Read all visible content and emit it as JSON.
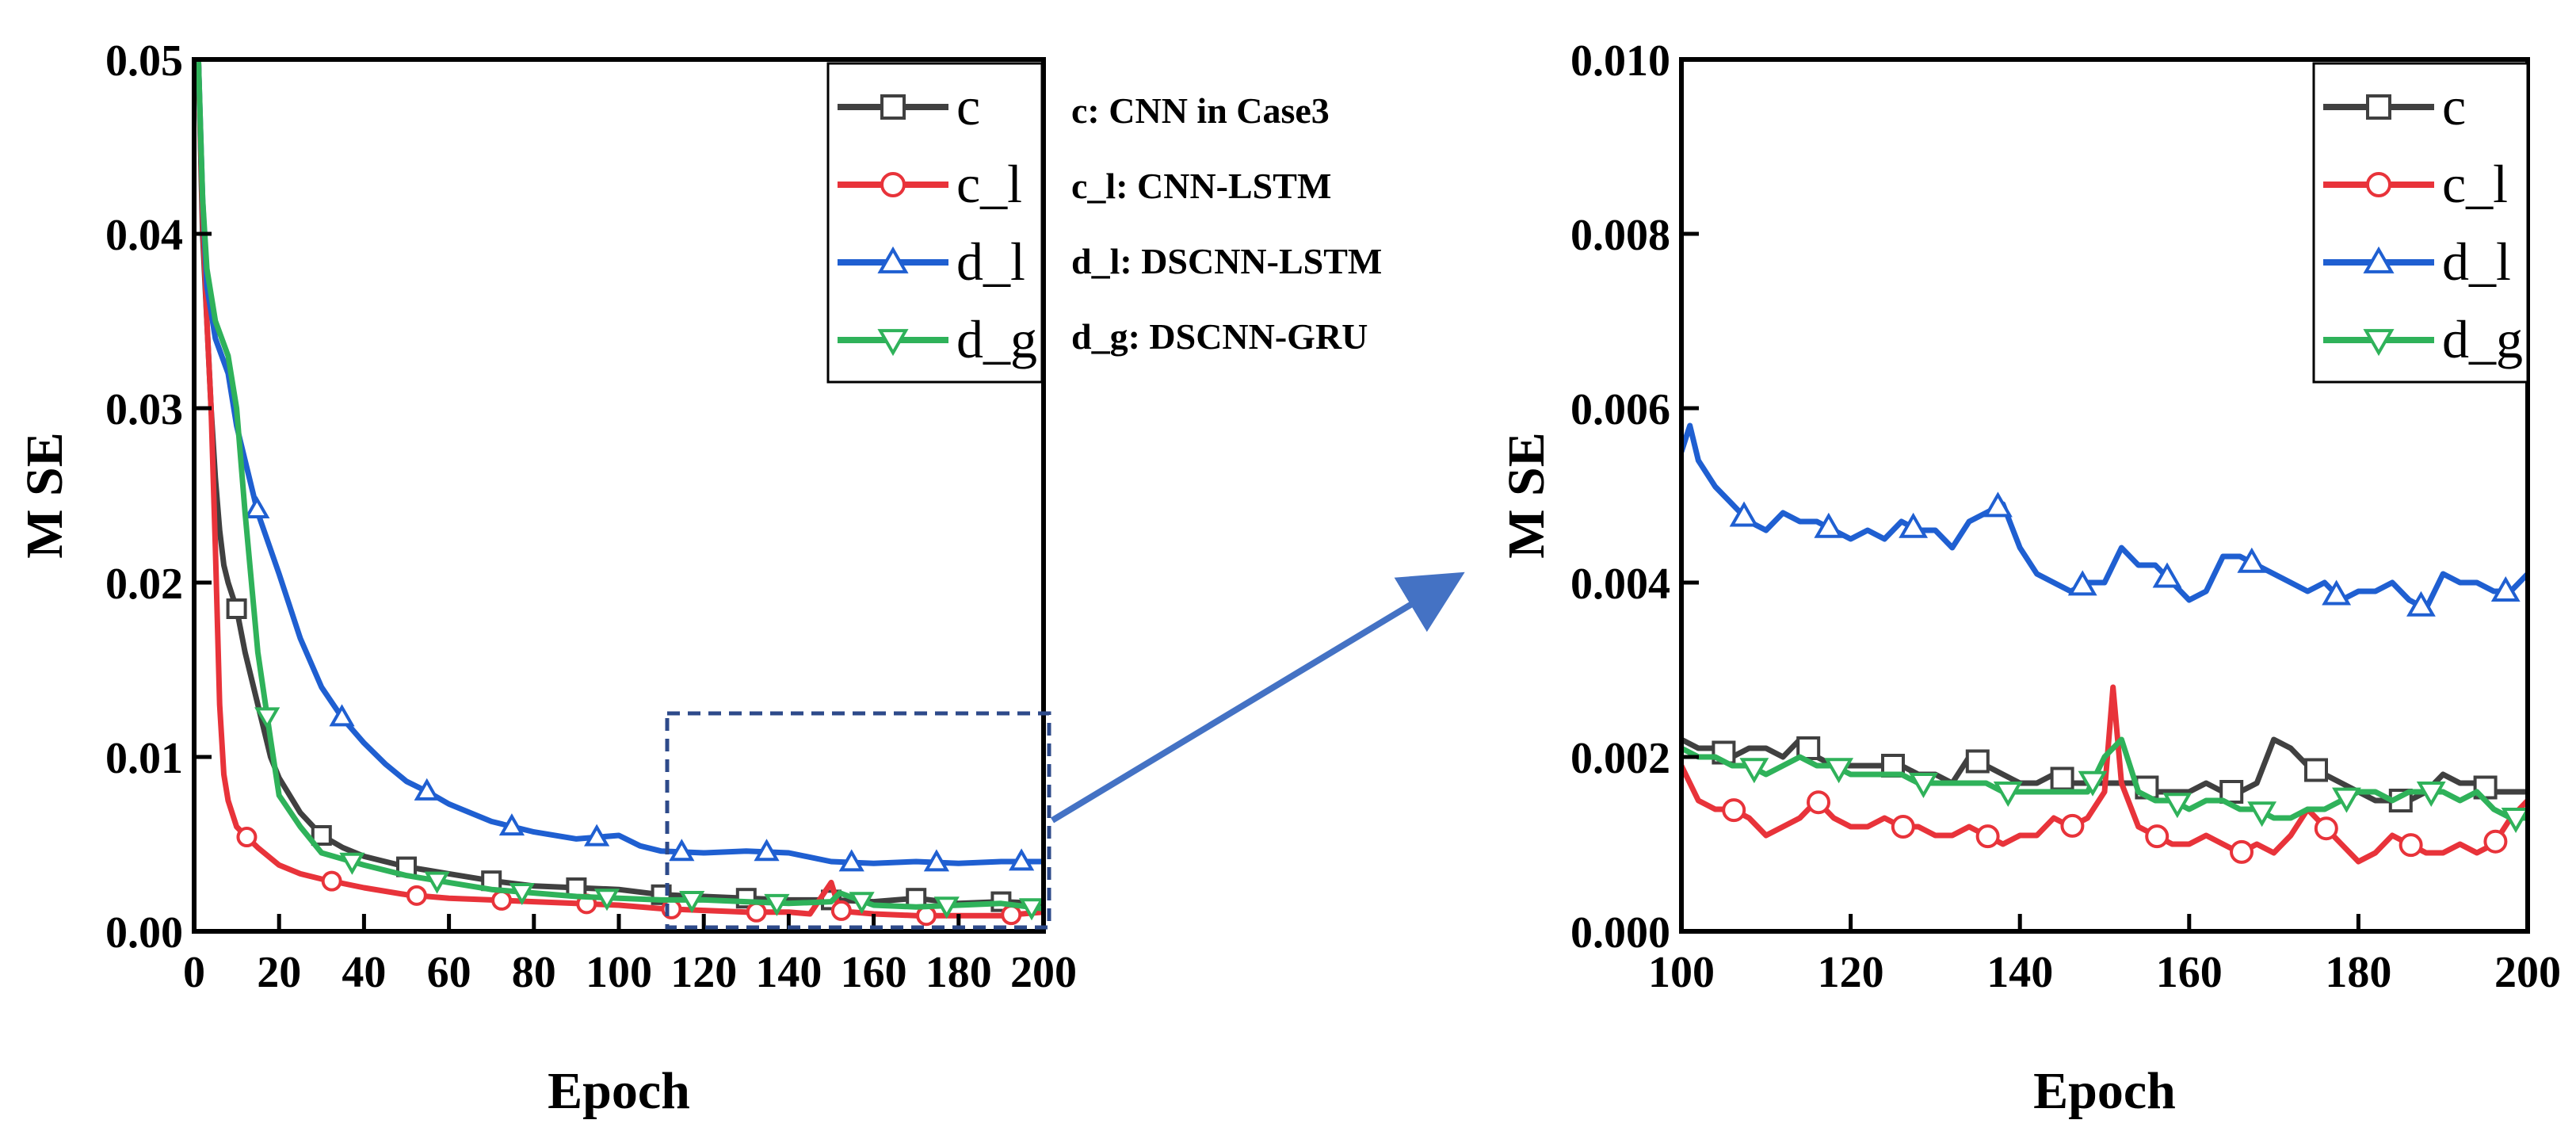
{
  "chart_data": [
    {
      "type": "line",
      "panel": "left",
      "title": "",
      "xlabel": "Epoch",
      "ylabel": "M SE",
      "xlim": [
        0,
        200
      ],
      "ylim": [
        0,
        0.05
      ],
      "xticks": [
        0,
        20,
        40,
        60,
        80,
        100,
        120,
        140,
        160,
        180,
        200
      ],
      "xtick_labels": [
        "0",
        "20",
        "40",
        "60",
        "80",
        "100",
        "120",
        "140",
        "160",
        "180",
        "200"
      ],
      "yticks": [
        0,
        0.01,
        0.02,
        0.03,
        0.04,
        0.05
      ],
      "ytick_labels": [
        "0.00",
        "0.01",
        "0.02",
        "0.03",
        "0.04",
        "0.05"
      ],
      "legend": [
        "c",
        "c_l",
        "d_l",
        "d_g"
      ],
      "legend_position": "top-right",
      "zoom_region": {
        "x": [
          110,
          200
        ],
        "y": [
          0,
          0.0125
        ]
      },
      "series": [
        {
          "name": "c",
          "color": "#404040",
          "marker": "square",
          "x": [
            1,
            2,
            3,
            4,
            5,
            6,
            7,
            8,
            10,
            12,
            15,
            18,
            20,
            25,
            30,
            35,
            40,
            45,
            50,
            55,
            60,
            70,
            80,
            90,
            100,
            110,
            120,
            130,
            140,
            150,
            160,
            170,
            180,
            190,
            200
          ],
          "y": [
            0.05,
            0.04,
            0.035,
            0.03,
            0.026,
            0.023,
            0.021,
            0.02,
            0.0185,
            0.016,
            0.013,
            0.01,
            0.0088,
            0.0068,
            0.0055,
            0.0048,
            0.0043,
            0.004,
            0.0037,
            0.0035,
            0.0033,
            0.0029,
            0.0026,
            0.0025,
            0.0024,
            0.0021,
            0.002,
            0.0019,
            0.0018,
            0.0018,
            0.0017,
            0.0019,
            0.0016,
            0.0017,
            0.0016
          ]
        },
        {
          "name": "c_l",
          "color": "#e8333a",
          "marker": "circle",
          "x": [
            1,
            2,
            3,
            4,
            5,
            6,
            7,
            8,
            10,
            12,
            15,
            20,
            25,
            30,
            40,
            50,
            60,
            70,
            80,
            90,
            100,
            110,
            120,
            130,
            140,
            145,
            150,
            152,
            155,
            160,
            170,
            180,
            190,
            200
          ],
          "y": [
            0.05,
            0.041,
            0.035,
            0.03,
            0.022,
            0.013,
            0.009,
            0.0075,
            0.006,
            0.0055,
            0.0048,
            0.0038,
            0.0033,
            0.003,
            0.0025,
            0.0021,
            0.0019,
            0.0018,
            0.0017,
            0.0016,
            0.0015,
            0.0013,
            0.0012,
            0.0011,
            0.0011,
            0.001,
            0.0028,
            0.0012,
            0.0011,
            0.001,
            0.0009,
            0.0009,
            0.0009,
            0.0011
          ]
        },
        {
          "name": "d_l",
          "color": "#1f5fd1",
          "marker": "triangle-up",
          "x": [
            1,
            2,
            3,
            5,
            8,
            10,
            12,
            15,
            20,
            25,
            30,
            35,
            40,
            45,
            50,
            55,
            60,
            70,
            80,
            90,
            100,
            105,
            110,
            120,
            130,
            140,
            150,
            160,
            170,
            180,
            190,
            200
          ],
          "y": [
            0.05,
            0.042,
            0.037,
            0.034,
            0.032,
            0.029,
            0.027,
            0.024,
            0.0205,
            0.0168,
            0.014,
            0.0122,
            0.0108,
            0.0096,
            0.0086,
            0.008,
            0.0073,
            0.0063,
            0.0057,
            0.0053,
            0.0055,
            0.0049,
            0.0046,
            0.0045,
            0.0046,
            0.0045,
            0.004,
            0.0039,
            0.004,
            0.0039,
            0.004,
            0.004
          ]
        },
        {
          "name": "d_g",
          "color": "#2fb25a",
          "marker": "triangle-down",
          "x": [
            1,
            2,
            3,
            5,
            8,
            10,
            12,
            15,
            18,
            20,
            25,
            30,
            40,
            50,
            60,
            70,
            80,
            90,
            100,
            110,
            120,
            130,
            140,
            150,
            152,
            160,
            170,
            180,
            190,
            200
          ],
          "y": [
            0.05,
            0.042,
            0.038,
            0.035,
            0.033,
            0.03,
            0.024,
            0.016,
            0.011,
            0.0078,
            0.006,
            0.0045,
            0.0038,
            0.0032,
            0.0028,
            0.0024,
            0.0022,
            0.002,
            0.0019,
            0.0018,
            0.0018,
            0.0017,
            0.0016,
            0.0017,
            0.0022,
            0.0015,
            0.0014,
            0.0015,
            0.0016,
            0.0013
          ]
        }
      ]
    },
    {
      "type": "line",
      "panel": "right",
      "title": "",
      "xlabel": "Epoch",
      "ylabel": "M SE",
      "xlim": [
        100,
        200
      ],
      "ylim": [
        0,
        0.01
      ],
      "xticks": [
        100,
        120,
        140,
        160,
        180,
        200
      ],
      "xtick_labels": [
        "100",
        "120",
        "140",
        "160",
        "180",
        "200"
      ],
      "yticks": [
        0,
        0.002,
        0.004,
        0.006,
        0.008,
        0.01
      ],
      "ytick_labels": [
        "0.000",
        "0.002",
        "0.004",
        "0.006",
        "0.008",
        "0.010"
      ],
      "legend": [
        "c",
        "c_l",
        "d_l",
        "d_g"
      ],
      "legend_position": "top-right",
      "series": [
        {
          "name": "c",
          "color": "#404040",
          "marker": "square",
          "x": [
            100,
            102,
            104,
            106,
            108,
            110,
            112,
            114,
            116,
            118,
            120,
            122,
            124,
            126,
            128,
            130,
            132,
            134,
            136,
            138,
            140,
            142,
            144,
            146,
            148,
            150,
            152,
            154,
            156,
            158,
            160,
            162,
            164,
            166,
            168,
            170,
            172,
            174,
            176,
            178,
            180,
            182,
            184,
            186,
            188,
            190,
            192,
            194,
            196,
            198,
            200
          ],
          "y": [
            0.0022,
            0.0021,
            0.0021,
            0.002,
            0.0021,
            0.0021,
            0.002,
            0.0022,
            0.002,
            0.0019,
            0.0019,
            0.0019,
            0.0019,
            0.0019,
            0.0018,
            0.0018,
            0.0017,
            0.002,
            0.0019,
            0.0018,
            0.0017,
            0.0017,
            0.0018,
            0.0017,
            0.0017,
            0.0017,
            0.0017,
            0.0017,
            0.0016,
            0.0016,
            0.0016,
            0.0017,
            0.0016,
            0.0016,
            0.0017,
            0.0022,
            0.0021,
            0.0019,
            0.0018,
            0.0017,
            0.0016,
            0.0015,
            0.0015,
            0.0015,
            0.0016,
            0.0018,
            0.0017,
            0.0017,
            0.0016,
            0.0016,
            0.0016
          ]
        },
        {
          "name": "c_l",
          "color": "#e8333a",
          "marker": "circle",
          "x": [
            100,
            102,
            104,
            106,
            108,
            110,
            112,
            114,
            116,
            118,
            120,
            122,
            124,
            126,
            128,
            130,
            132,
            134,
            136,
            138,
            140,
            142,
            144,
            146,
            148,
            150,
            151,
            152,
            154,
            156,
            158,
            160,
            162,
            164,
            166,
            168,
            170,
            172,
            174,
            176,
            178,
            180,
            182,
            184,
            186,
            188,
            190,
            192,
            194,
            196,
            198,
            200
          ],
          "y": [
            0.0019,
            0.0015,
            0.0014,
            0.0014,
            0.0013,
            0.0011,
            0.0012,
            0.0013,
            0.0015,
            0.0013,
            0.0012,
            0.0012,
            0.0013,
            0.0012,
            0.0012,
            0.0011,
            0.0011,
            0.0012,
            0.0011,
            0.001,
            0.0011,
            0.0011,
            0.0013,
            0.0012,
            0.0013,
            0.0016,
            0.0028,
            0.0017,
            0.0012,
            0.0011,
            0.001,
            0.001,
            0.0011,
            0.001,
            0.0009,
            0.001,
            0.0009,
            0.0011,
            0.0014,
            0.0012,
            0.001,
            0.0008,
            0.0009,
            0.0011,
            0.001,
            0.0009,
            0.0009,
            0.001,
            0.0009,
            0.001,
            0.0013,
            0.0015
          ]
        },
        {
          "name": "d_l",
          "color": "#1f5fd1",
          "marker": "triangle-up",
          "x": [
            100,
            101,
            102,
            104,
            106,
            108,
            110,
            112,
            114,
            116,
            118,
            120,
            122,
            124,
            126,
            128,
            130,
            132,
            134,
            136,
            138,
            140,
            142,
            144,
            146,
            148,
            150,
            152,
            154,
            156,
            158,
            160,
            162,
            164,
            166,
            168,
            170,
            172,
            174,
            176,
            178,
            180,
            182,
            184,
            186,
            188,
            190,
            192,
            194,
            196,
            198,
            200
          ],
          "y": [
            0.0055,
            0.0058,
            0.0054,
            0.0051,
            0.0049,
            0.0047,
            0.0046,
            0.0048,
            0.0047,
            0.0047,
            0.0046,
            0.0045,
            0.0046,
            0.0045,
            0.0047,
            0.0046,
            0.0046,
            0.0044,
            0.0047,
            0.0048,
            0.0049,
            0.0044,
            0.0041,
            0.004,
            0.0039,
            0.004,
            0.004,
            0.0044,
            0.0042,
            0.0042,
            0.004,
            0.0038,
            0.0039,
            0.0043,
            0.0043,
            0.0042,
            0.0041,
            0.004,
            0.0039,
            0.004,
            0.0038,
            0.0039,
            0.0039,
            0.004,
            0.0038,
            0.0037,
            0.0041,
            0.004,
            0.004,
            0.0039,
            0.0039,
            0.0041
          ]
        },
        {
          "name": "d_g",
          "color": "#2fb25a",
          "marker": "triangle-down",
          "x": [
            100,
            102,
            104,
            106,
            108,
            110,
            112,
            114,
            116,
            118,
            120,
            122,
            124,
            126,
            128,
            130,
            132,
            134,
            136,
            138,
            140,
            142,
            144,
            146,
            148,
            150,
            151,
            152,
            154,
            156,
            158,
            160,
            162,
            164,
            166,
            168,
            170,
            172,
            174,
            176,
            178,
            180,
            182,
            184,
            186,
            188,
            190,
            192,
            194,
            196,
            198,
            200
          ],
          "y": [
            0.0021,
            0.002,
            0.002,
            0.0019,
            0.0019,
            0.0018,
            0.0019,
            0.002,
            0.0019,
            0.0019,
            0.0018,
            0.0018,
            0.0018,
            0.0018,
            0.0017,
            0.0017,
            0.0017,
            0.0017,
            0.0017,
            0.0016,
            0.0016,
            0.0016,
            0.0016,
            0.0016,
            0.0016,
            0.002,
            0.0021,
            0.0022,
            0.0016,
            0.0015,
            0.0015,
            0.0014,
            0.0015,
            0.0015,
            0.0014,
            0.0014,
            0.0013,
            0.0013,
            0.0014,
            0.0014,
            0.0015,
            0.0016,
            0.0016,
            0.0015,
            0.0016,
            0.0016,
            0.0016,
            0.0015,
            0.0016,
            0.0014,
            0.0013,
            0.0013
          ]
        }
      ]
    }
  ],
  "descriptions": [
    {
      "prefix": "c:",
      "text": "CNN in Case3"
    },
    {
      "prefix": "c_l:",
      "text": "CNN-LSTM"
    },
    {
      "prefix": "d_l:",
      "text": "DSCNN-LSTM"
    },
    {
      "prefix": "d_g:",
      "text": "DSCNN-GRU"
    }
  ],
  "annotations": {
    "zoom_box_color": "#2d4a8a",
    "arrow_color": "#4472c4"
  }
}
